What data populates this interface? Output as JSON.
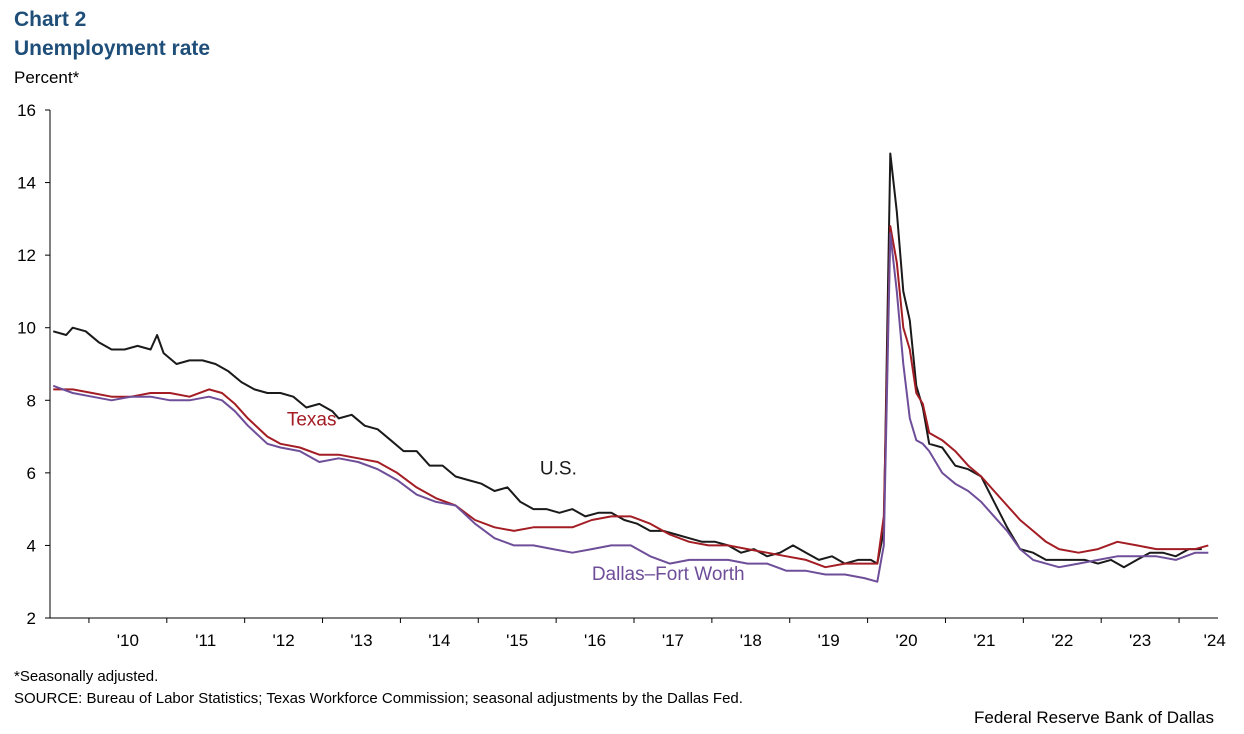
{
  "header": {
    "chart_number": "Chart 2",
    "title": "Unemployment rate",
    "y_unit_label": "Percent*"
  },
  "footer": {
    "note": "*Seasonally adjusted.",
    "source": "SOURCE: Bureau of Labor Statistics; Texas Workforce Commission; seasonal adjustments by the Dallas Fed.",
    "brand": "Federal Reserve Bank of Dallas"
  },
  "chart_data": {
    "type": "line",
    "title": "Unemployment rate",
    "ylabel": "Percent*",
    "xlabel": "",
    "ylim": [
      2,
      16
    ],
    "yticks": [
      2,
      4,
      6,
      8,
      10,
      12,
      14,
      16
    ],
    "xlim": [
      "2009-07",
      "2024-06"
    ],
    "xtick_labels": [
      "'10",
      "'11",
      "'12",
      "'13",
      "'14",
      "'15",
      "'16",
      "'17",
      "'18",
      "'19",
      "'20",
      "'21",
      "'22",
      "'23",
      "'24"
    ],
    "grid": false,
    "legend": "inline labels on chart",
    "series": [
      {
        "name": "U.S.",
        "color": "#1a1a1a",
        "points": [
          [
            "2009-07",
            9.9
          ],
          [
            "2009-09",
            9.8
          ],
          [
            "2009-10",
            10.0
          ],
          [
            "2009-12",
            9.9
          ],
          [
            "2010-02",
            9.6
          ],
          [
            "2010-04",
            9.4
          ],
          [
            "2010-06",
            9.4
          ],
          [
            "2010-08",
            9.5
          ],
          [
            "2010-10",
            9.4
          ],
          [
            "2010-11",
            9.8
          ],
          [
            "2010-12",
            9.3
          ],
          [
            "2011-02",
            9.0
          ],
          [
            "2011-04",
            9.1
          ],
          [
            "2011-06",
            9.1
          ],
          [
            "2011-08",
            9.0
          ],
          [
            "2011-10",
            8.8
          ],
          [
            "2011-12",
            8.5
          ],
          [
            "2012-02",
            8.3
          ],
          [
            "2012-04",
            8.2
          ],
          [
            "2012-06",
            8.2
          ],
          [
            "2012-08",
            8.1
          ],
          [
            "2012-10",
            7.8
          ],
          [
            "2012-12",
            7.9
          ],
          [
            "2013-02",
            7.7
          ],
          [
            "2013-03",
            7.5
          ],
          [
            "2013-05",
            7.6
          ],
          [
            "2013-07",
            7.3
          ],
          [
            "2013-09",
            7.2
          ],
          [
            "2013-11",
            6.9
          ],
          [
            "2014-01",
            6.6
          ],
          [
            "2014-03",
            6.6
          ],
          [
            "2014-05",
            6.2
          ],
          [
            "2014-07",
            6.2
          ],
          [
            "2014-09",
            5.9
          ],
          [
            "2014-11",
            5.8
          ],
          [
            "2015-01",
            5.7
          ],
          [
            "2015-03",
            5.5
          ],
          [
            "2015-05",
            5.6
          ],
          [
            "2015-07",
            5.2
          ],
          [
            "2015-09",
            5.0
          ],
          [
            "2015-11",
            5.0
          ],
          [
            "2016-01",
            4.9
          ],
          [
            "2016-03",
            5.0
          ],
          [
            "2016-05",
            4.8
          ],
          [
            "2016-07",
            4.9
          ],
          [
            "2016-09",
            4.9
          ],
          [
            "2016-11",
            4.7
          ],
          [
            "2017-01",
            4.6
          ],
          [
            "2017-03",
            4.4
          ],
          [
            "2017-05",
            4.4
          ],
          [
            "2017-07",
            4.3
          ],
          [
            "2017-09",
            4.2
          ],
          [
            "2017-11",
            4.1
          ],
          [
            "2018-01",
            4.1
          ],
          [
            "2018-03",
            4.0
          ],
          [
            "2018-05",
            3.8
          ],
          [
            "2018-07",
            3.9
          ],
          [
            "2018-09",
            3.7
          ],
          [
            "2018-11",
            3.8
          ],
          [
            "2019-01",
            4.0
          ],
          [
            "2019-03",
            3.8
          ],
          [
            "2019-05",
            3.6
          ],
          [
            "2019-07",
            3.7
          ],
          [
            "2019-09",
            3.5
          ],
          [
            "2019-11",
            3.6
          ],
          [
            "2020-01",
            3.6
          ],
          [
            "2020-02",
            3.5
          ],
          [
            "2020-03",
            4.4
          ],
          [
            "2020-04",
            14.8
          ],
          [
            "2020-05",
            13.2
          ],
          [
            "2020-06",
            11.0
          ],
          [
            "2020-07",
            10.2
          ],
          [
            "2020-08",
            8.4
          ],
          [
            "2020-09",
            7.8
          ],
          [
            "2020-10",
            6.8
          ],
          [
            "2020-12",
            6.7
          ],
          [
            "2021-02",
            6.2
          ],
          [
            "2021-04",
            6.1
          ],
          [
            "2021-06",
            5.9
          ],
          [
            "2021-08",
            5.2
          ],
          [
            "2021-10",
            4.5
          ],
          [
            "2021-12",
            3.9
          ],
          [
            "2022-02",
            3.8
          ],
          [
            "2022-04",
            3.6
          ],
          [
            "2022-06",
            3.6
          ],
          [
            "2022-08",
            3.6
          ],
          [
            "2022-10",
            3.6
          ],
          [
            "2022-12",
            3.5
          ],
          [
            "2023-02",
            3.6
          ],
          [
            "2023-04",
            3.4
          ],
          [
            "2023-06",
            3.6
          ],
          [
            "2023-08",
            3.8
          ],
          [
            "2023-10",
            3.8
          ],
          [
            "2023-12",
            3.7
          ],
          [
            "2024-02",
            3.9
          ],
          [
            "2024-04",
            3.9
          ]
        ]
      },
      {
        "name": "Texas",
        "color": "#a31d24",
        "points": [
          [
            "2009-07",
            8.3
          ],
          [
            "2009-10",
            8.3
          ],
          [
            "2010-01",
            8.2
          ],
          [
            "2010-04",
            8.1
          ],
          [
            "2010-07",
            8.1
          ],
          [
            "2010-10",
            8.2
          ],
          [
            "2011-01",
            8.2
          ],
          [
            "2011-04",
            8.1
          ],
          [
            "2011-07",
            8.3
          ],
          [
            "2011-09",
            8.2
          ],
          [
            "2011-11",
            7.9
          ],
          [
            "2012-01",
            7.5
          ],
          [
            "2012-04",
            7.0
          ],
          [
            "2012-06",
            6.8
          ],
          [
            "2012-09",
            6.7
          ],
          [
            "2012-12",
            6.5
          ],
          [
            "2013-03",
            6.5
          ],
          [
            "2013-06",
            6.4
          ],
          [
            "2013-09",
            6.3
          ],
          [
            "2013-12",
            6.0
          ],
          [
            "2014-03",
            5.6
          ],
          [
            "2014-06",
            5.3
          ],
          [
            "2014-09",
            5.1
          ],
          [
            "2014-12",
            4.7
          ],
          [
            "2015-03",
            4.5
          ],
          [
            "2015-06",
            4.4
          ],
          [
            "2015-09",
            4.5
          ],
          [
            "2015-12",
            4.5
          ],
          [
            "2016-03",
            4.5
          ],
          [
            "2016-06",
            4.7
          ],
          [
            "2016-09",
            4.8
          ],
          [
            "2016-12",
            4.8
          ],
          [
            "2017-03",
            4.6
          ],
          [
            "2017-06",
            4.3
          ],
          [
            "2017-09",
            4.1
          ],
          [
            "2017-12",
            4.0
          ],
          [
            "2018-03",
            4.0
          ],
          [
            "2018-06",
            3.9
          ],
          [
            "2018-09",
            3.8
          ],
          [
            "2018-12",
            3.7
          ],
          [
            "2019-03",
            3.6
          ],
          [
            "2019-06",
            3.4
          ],
          [
            "2019-09",
            3.5
          ],
          [
            "2019-12",
            3.5
          ],
          [
            "2020-02",
            3.5
          ],
          [
            "2020-03",
            4.8
          ],
          [
            "2020-04",
            12.8
          ],
          [
            "2020-05",
            11.8
          ],
          [
            "2020-06",
            10.0
          ],
          [
            "2020-07",
            9.4
          ],
          [
            "2020-08",
            8.2
          ],
          [
            "2020-09",
            7.9
          ],
          [
            "2020-10",
            7.1
          ],
          [
            "2020-12",
            6.9
          ],
          [
            "2021-02",
            6.6
          ],
          [
            "2021-04",
            6.2
          ],
          [
            "2021-06",
            5.9
          ],
          [
            "2021-08",
            5.5
          ],
          [
            "2021-10",
            5.1
          ],
          [
            "2021-12",
            4.7
          ],
          [
            "2022-02",
            4.4
          ],
          [
            "2022-04",
            4.1
          ],
          [
            "2022-06",
            3.9
          ],
          [
            "2022-09",
            3.8
          ],
          [
            "2022-12",
            3.9
          ],
          [
            "2023-03",
            4.1
          ],
          [
            "2023-06",
            4.0
          ],
          [
            "2023-09",
            3.9
          ],
          [
            "2023-12",
            3.9
          ],
          [
            "2024-03",
            3.9
          ],
          [
            "2024-05",
            4.0
          ]
        ]
      },
      {
        "name": "Dallas–Fort Worth",
        "color": "#6f4e99",
        "points": [
          [
            "2009-07",
            8.4
          ],
          [
            "2009-10",
            8.2
          ],
          [
            "2010-01",
            8.1
          ],
          [
            "2010-04",
            8.0
          ],
          [
            "2010-07",
            8.1
          ],
          [
            "2010-10",
            8.1
          ],
          [
            "2011-01",
            8.0
          ],
          [
            "2011-04",
            8.0
          ],
          [
            "2011-07",
            8.1
          ],
          [
            "2011-09",
            8.0
          ],
          [
            "2011-11",
            7.7
          ],
          [
            "2012-01",
            7.3
          ],
          [
            "2012-04",
            6.8
          ],
          [
            "2012-06",
            6.7
          ],
          [
            "2012-09",
            6.6
          ],
          [
            "2012-12",
            6.3
          ],
          [
            "2013-03",
            6.4
          ],
          [
            "2013-06",
            6.3
          ],
          [
            "2013-09",
            6.1
          ],
          [
            "2013-12",
            5.8
          ],
          [
            "2014-03",
            5.4
          ],
          [
            "2014-06",
            5.2
          ],
          [
            "2014-09",
            5.1
          ],
          [
            "2014-12",
            4.6
          ],
          [
            "2015-03",
            4.2
          ],
          [
            "2015-06",
            4.0
          ],
          [
            "2015-09",
            4.0
          ],
          [
            "2015-12",
            3.9
          ],
          [
            "2016-03",
            3.8
          ],
          [
            "2016-06",
            3.9
          ],
          [
            "2016-09",
            4.0
          ],
          [
            "2016-12",
            4.0
          ],
          [
            "2017-03",
            3.7
          ],
          [
            "2017-06",
            3.5
          ],
          [
            "2017-09",
            3.6
          ],
          [
            "2017-12",
            3.6
          ],
          [
            "2018-03",
            3.6
          ],
          [
            "2018-06",
            3.5
          ],
          [
            "2018-09",
            3.5
          ],
          [
            "2018-12",
            3.3
          ],
          [
            "2019-03",
            3.3
          ],
          [
            "2019-06",
            3.2
          ],
          [
            "2019-09",
            3.2
          ],
          [
            "2019-12",
            3.1
          ],
          [
            "2020-02",
            3.0
          ],
          [
            "2020-03",
            4.0
          ],
          [
            "2020-04",
            12.6
          ],
          [
            "2020-05",
            11.0
          ],
          [
            "2020-06",
            9.0
          ],
          [
            "2020-07",
            7.5
          ],
          [
            "2020-08",
            6.9
          ],
          [
            "2020-09",
            6.8
          ],
          [
            "2020-10",
            6.6
          ],
          [
            "2020-12",
            6.0
          ],
          [
            "2021-02",
            5.7
          ],
          [
            "2021-04",
            5.5
          ],
          [
            "2021-06",
            5.2
          ],
          [
            "2021-08",
            4.8
          ],
          [
            "2021-10",
            4.4
          ],
          [
            "2021-12",
            3.9
          ],
          [
            "2022-02",
            3.6
          ],
          [
            "2022-04",
            3.5
          ],
          [
            "2022-06",
            3.4
          ],
          [
            "2022-09",
            3.5
          ],
          [
            "2022-12",
            3.6
          ],
          [
            "2023-03",
            3.7
          ],
          [
            "2023-06",
            3.7
          ],
          [
            "2023-09",
            3.7
          ],
          [
            "2023-12",
            3.6
          ],
          [
            "2024-03",
            3.8
          ],
          [
            "2024-05",
            3.8
          ]
        ]
      }
    ],
    "annotations": [
      {
        "text": "Texas",
        "color": "#a31d24",
        "at": [
          "2012-07",
          7.3
        ]
      },
      {
        "text": "U.S.",
        "color": "#1a1a1a",
        "at": [
          "2015-10",
          5.95
        ]
      },
      {
        "text": "Dallas–Fort Worth",
        "color": "#6f4e99",
        "at": [
          "2016-06",
          3.05
        ]
      }
    ]
  }
}
